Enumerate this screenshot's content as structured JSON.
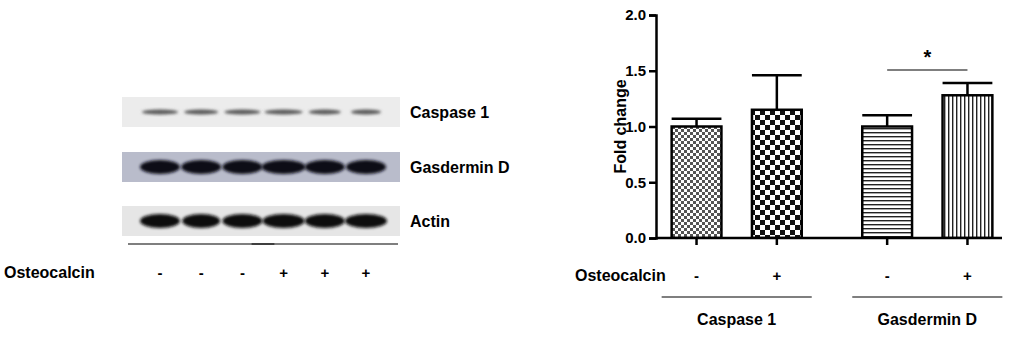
{
  "blot": {
    "rows": [
      "Caspase 1",
      "Gasdermin D",
      "Actin"
    ],
    "treatment_label": "Osteocalcin",
    "lanes": [
      "-",
      "-",
      "-",
      "+",
      "+",
      "+"
    ]
  },
  "chart_data": {
    "type": "bar",
    "y_label": "Fold change",
    "x_label": "Osteocalcin",
    "categories": [
      "-",
      "+"
    ],
    "series": [
      {
        "name": "Caspase 1",
        "values": [
          1.0,
          1.15
        ],
        "errors": [
          0.07,
          0.31
        ]
      },
      {
        "name": "Gasdermin D",
        "values": [
          1.0,
          1.28
        ],
        "errors": [
          0.1,
          0.11
        ]
      }
    ],
    "annotations": [
      {
        "text": "*",
        "series": 1
      }
    ],
    "color": "#000000",
    "ylim": [
      0,
      2
    ],
    "yticks": [
      {
        "value": 0,
        "label": "0.0"
      },
      {
        "value": 0.5,
        "label": "0.5"
      },
      {
        "value": 1,
        "label": "1.0"
      },
      {
        "value": 1.5,
        "label": "1.5"
      },
      {
        "value": 2,
        "label": "2.0"
      }
    ],
    "grid": false
  }
}
